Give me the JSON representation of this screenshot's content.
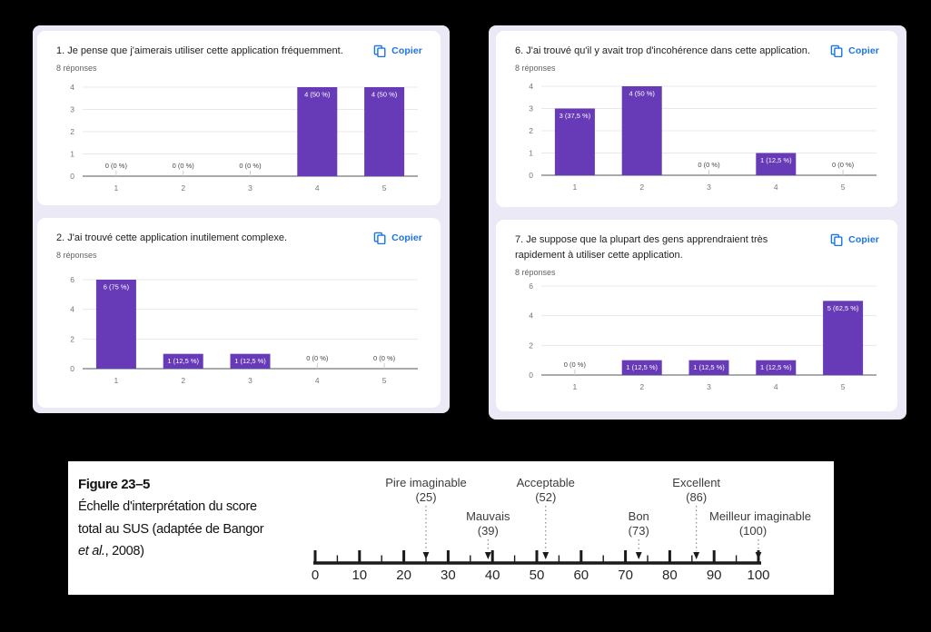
{
  "page": {
    "background": "#000000"
  },
  "theme": {
    "bar_color": "#673ab7",
    "accent_blue": "#1a73e8",
    "panel_bg": "#ece9f7",
    "grid_color": "#e8e8e8",
    "axis_text": "#757575",
    "zero_label_color": "#44474a"
  },
  "forms": {
    "copy_label": "Copier",
    "charts": [
      {
        "question": "1. Je pense que j'aimerais utiliser cette application fréquemment.",
        "responses": "8 réponses"
      },
      {
        "question": "2. J'ai trouvé cette application inutilement complexe.",
        "responses": "8 réponses"
      },
      {
        "question": "6. J'ai trouvé qu'il y avait trop d'incohérence dans cette application.",
        "responses": "8 réponses"
      },
      {
        "question": "7. Je suppose que la plupart des gens apprendraient très rapidement à utiliser cette application.",
        "responses": "8 réponses"
      }
    ]
  },
  "figure": {
    "title": "Figure 23–5",
    "caption_line1": "Échelle d'interprétation du score",
    "caption_line2": "total au SUS (adaptée de Bangor",
    "caption_line3_italic": "et al.",
    "caption_line3_rest": ", 2008)"
  },
  "chart_data": [
    {
      "type": "bar",
      "title": "1. Je pense que j'aimerais utiliser cette application fréquemment.",
      "subtitle": "8 réponses",
      "categories": [
        "1",
        "2",
        "3",
        "4",
        "5"
      ],
      "values": [
        0,
        0,
        0,
        4,
        4
      ],
      "value_labels": [
        "0 (0 %)",
        "0 (0 %)",
        "0 (0 %)",
        "4 (50 %)",
        "4 (50 %)"
      ],
      "yticks": [
        0,
        1,
        2,
        3,
        4
      ],
      "ylim": [
        0,
        4
      ],
      "bar_color": "#673ab7",
      "grid": true,
      "legend": "none"
    },
    {
      "type": "bar",
      "title": "2. J'ai trouvé cette application inutilement complexe.",
      "subtitle": "8 réponses",
      "categories": [
        "1",
        "2",
        "3",
        "4",
        "5"
      ],
      "values": [
        6,
        1,
        1,
        0,
        0
      ],
      "value_labels": [
        "6 (75 %)",
        "1 (12,5 %)",
        "1 (12,5 %)",
        "0 (0 %)",
        "0 (0 %)"
      ],
      "yticks": [
        0,
        2,
        4,
        6
      ],
      "ylim": [
        0,
        6
      ],
      "bar_color": "#673ab7",
      "grid": true,
      "legend": "none"
    },
    {
      "type": "bar",
      "title": "6. J'ai trouvé qu'il y avait trop d'incohérence dans cette application.",
      "subtitle": "8 réponses",
      "categories": [
        "1",
        "2",
        "3",
        "4",
        "5"
      ],
      "values": [
        3,
        4,
        0,
        1,
        0
      ],
      "value_labels": [
        "3 (37,5 %)",
        "4 (50 %)",
        "0 (0 %)",
        "1 (12,5 %)",
        "0 (0 %)"
      ],
      "yticks": [
        0,
        1,
        2,
        3,
        4
      ],
      "ylim": [
        0,
        4
      ],
      "bar_color": "#673ab7",
      "grid": true,
      "legend": "none"
    },
    {
      "type": "bar",
      "title": "7. Je suppose que la plupart des gens apprendraient très rapidement à utiliser cette application.",
      "subtitle": "8 réponses",
      "categories": [
        "1",
        "2",
        "3",
        "4",
        "5"
      ],
      "values": [
        0,
        1,
        1,
        1,
        5
      ],
      "value_labels": [
        "0 (0 %)",
        "1 (12,5 %)",
        "1 (12,5 %)",
        "1 (12,5 %)",
        "5 (62,5 %)"
      ],
      "yticks": [
        0,
        2,
        4,
        6
      ],
      "ylim": [
        0,
        6
      ],
      "bar_color": "#673ab7",
      "grid": true,
      "legend": "none"
    },
    {
      "type": "scale",
      "title": "Échelle d'interprétation du score total au SUS (adaptée de Bangor et al., 2008)",
      "axis_min": 0,
      "axis_max": 100,
      "major_tick_step": 10,
      "minor_tick_step": 5,
      "tick_labels": [
        0,
        10,
        20,
        30,
        40,
        50,
        60,
        70,
        80,
        90,
        100
      ],
      "markers": [
        {
          "label": "Pire imaginable",
          "value": 25,
          "row": "upper"
        },
        {
          "label": "Mauvais",
          "value": 39,
          "row": "lower"
        },
        {
          "label": "Acceptable",
          "value": 52,
          "row": "upper"
        },
        {
          "label": "Bon",
          "value": 73,
          "row": "lower"
        },
        {
          "label": "Excellent",
          "value": 86,
          "row": "upper"
        },
        {
          "label": "Meilleur imaginable",
          "value": 100,
          "row": "lower"
        }
      ]
    }
  ]
}
